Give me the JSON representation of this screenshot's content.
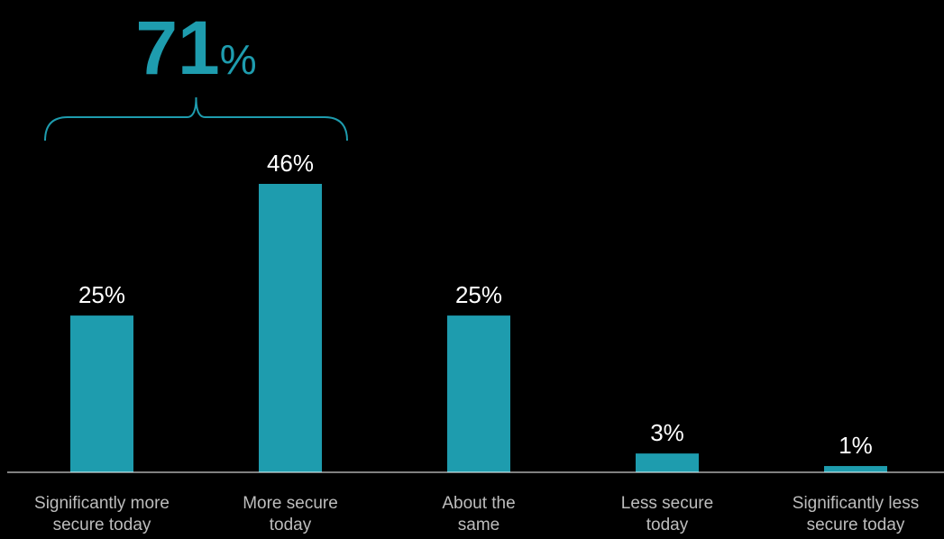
{
  "chart_data": {
    "type": "bar",
    "categories": [
      "Significantly more secure today",
      "More secure today",
      "About the same",
      "Less secure today",
      "Significantly less secure today"
    ],
    "category_lines": [
      [
        "Significantly more",
        "secure today"
      ],
      [
        "More secure",
        "today"
      ],
      [
        "About the",
        "same"
      ],
      [
        "Less secure",
        "today"
      ],
      [
        "Significantly less",
        "secure today"
      ]
    ],
    "values": [
      25,
      46,
      25,
      3,
      1
    ],
    "value_labels": [
      "25%",
      "46%",
      "25%",
      "3%",
      "1%"
    ],
    "ylim": [
      0,
      46
    ],
    "grid": false,
    "bar_color": "#1e9cae",
    "annotation": {
      "number": "71",
      "unit": "%",
      "spans_categories": [
        0,
        1
      ],
      "color": "#1e9cae"
    }
  }
}
